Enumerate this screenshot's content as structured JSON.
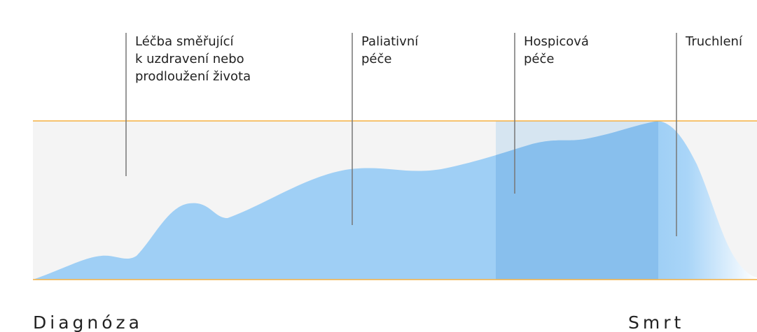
{
  "phases": [
    {
      "lines": [
        "Léčba směřující",
        "k uzdravení nebo",
        "prodloužení života"
      ]
    },
    {
      "lines": [
        "Paliativní",
        "péče"
      ]
    },
    {
      "lines": [
        "Hospicová",
        "péče"
      ]
    },
    {
      "lines": [
        "Truchlení"
      ]
    }
  ],
  "timeline": {
    "start": "Diagnóza",
    "end": "Smrt"
  }
}
